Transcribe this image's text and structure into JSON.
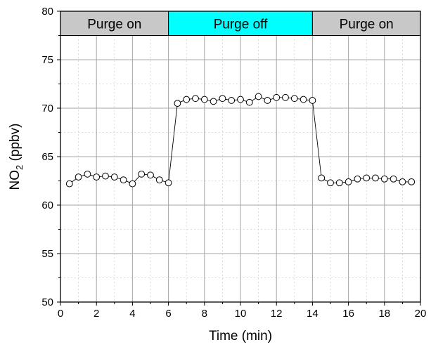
{
  "chart_data": {
    "type": "scatter",
    "xlabel": "Time (min)",
    "ylabel_main": "NO",
    "ylabel_sub": "2",
    "ylabel_rest": " (ppbv)",
    "xlim": [
      0,
      20
    ],
    "ylim": [
      50,
      80
    ],
    "xticks": [
      0,
      2,
      4,
      6,
      8,
      10,
      12,
      14,
      16,
      18,
      20
    ],
    "yticks": [
      50,
      55,
      60,
      65,
      70,
      75,
      80
    ],
    "xtick_labels": [
      "0",
      "2",
      "4",
      "6",
      "8",
      "10",
      "12",
      "14",
      "16",
      "18",
      "20"
    ],
    "ytick_labels": [
      "50",
      "55",
      "60",
      "65",
      "70",
      "75",
      "80"
    ],
    "grid": true,
    "series": [
      {
        "marker": "open-circle",
        "line": "connected",
        "x": [
          0.5,
          1.0,
          1.5,
          2.0,
          2.5,
          3.0,
          3.5,
          4.0,
          4.5,
          5.0,
          5.5,
          6.0,
          6.5,
          7.0,
          7.5,
          8.0,
          8.5,
          9.0,
          9.5,
          10.0,
          10.5,
          11.0,
          11.5,
          12.0,
          12.5,
          13.0,
          13.5,
          14.0,
          14.5,
          15.0,
          15.5,
          16.0,
          16.5,
          17.0,
          17.5,
          18.0,
          18.5,
          19.0,
          19.5
        ],
        "y": [
          62.2,
          62.9,
          63.2,
          62.9,
          63.0,
          62.9,
          62.6,
          62.2,
          63.2,
          63.1,
          62.6,
          62.3,
          70.5,
          70.9,
          71.0,
          70.9,
          70.7,
          71.0,
          70.8,
          70.9,
          70.6,
          71.2,
          70.8,
          71.1,
          71.1,
          71.0,
          70.9,
          70.8,
          62.8,
          62.3,
          62.3,
          62.4,
          62.7,
          62.8,
          62.8,
          62.7,
          62.7,
          62.4,
          62.4
        ]
      }
    ],
    "bands": [
      {
        "label": "Purge on",
        "x_start": 0,
        "x_end": 6,
        "color": "#c8c8c8"
      },
      {
        "label": "Purge off",
        "x_start": 6,
        "x_end": 14,
        "color": "#00ffff"
      },
      {
        "label": "Purge on",
        "x_start": 14,
        "x_end": 20,
        "color": "#c8c8c8"
      }
    ],
    "band_y_range": [
      77.5,
      80
    ]
  }
}
